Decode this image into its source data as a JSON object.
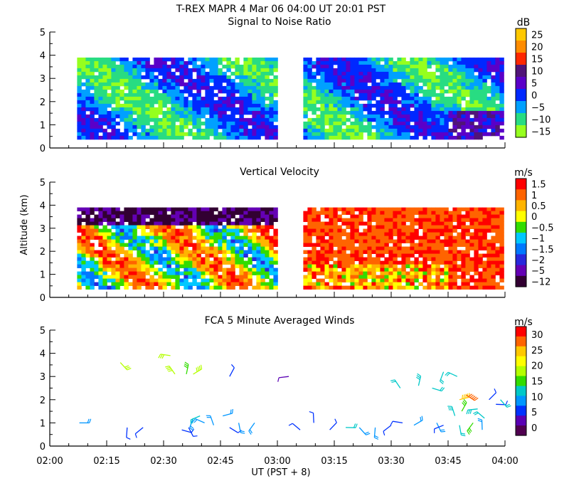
{
  "header": {
    "title": "T-REX   MAPR   4 Mar 06   04:00 UT   20:01   PST"
  },
  "chart_data": [
    {
      "type": "heatmap",
      "title": "Signal to Noise Ratio",
      "ylabel": "",
      "ylim": [
        0,
        5
      ],
      "yticks": [
        "0",
        "1",
        "2",
        "3",
        "4",
        "5"
      ],
      "colorbar": {
        "unit": "dB",
        "labels": [
          "25",
          "20",
          "15",
          "10",
          "5",
          "0",
          "−5",
          "−10",
          "−15"
        ],
        "colors": [
          "#ffc800",
          "#ff8c00",
          "#ff2800",
          "#501478",
          "#5a00c8",
          "#0028ff",
          "#00a0ff",
          "#28dc82",
          "#96ff1e"
        ]
      },
      "data_gaps_utc": [
        [
          "02:59",
          "03:06"
        ]
      ],
      "data_altitude_km": [
        0.4,
        3.9
      ]
    },
    {
      "type": "heatmap",
      "title": "Vertical Velocity",
      "ylabel": "Altitude (km)",
      "ylim": [
        0,
        5
      ],
      "yticks": [
        "0",
        "1",
        "2",
        "3",
        "4",
        "5"
      ],
      "colorbar": {
        "unit": "m/s",
        "labels": [
          "1.5",
          "1",
          "0.5",
          "0",
          "−0.5",
          "−1",
          "−1.5",
          "−2",
          "−5",
          "−12"
        ],
        "colors": [
          "#ff0000",
          "#ff6400",
          "#ffb400",
          "#ffff00",
          "#32dc00",
          "#00c8ff",
          "#0078ff",
          "#2828dc",
          "#6400b4",
          "#320032"
        ]
      },
      "data_gaps_utc": [
        [
          "02:59",
          "03:06"
        ]
      ],
      "data_altitude_km": [
        0.4,
        3.9
      ]
    },
    {
      "type": "scatter",
      "title": "FCA 5 Minute Averaged Winds",
      "ylabel": "",
      "ylim": [
        0,
        5
      ],
      "yticks": [
        "0",
        "1",
        "2",
        "3",
        "4",
        "5"
      ],
      "xlabel": "UT  (PST + 8)",
      "xticks": [
        "02:00",
        "02:15",
        "02:30",
        "02:45",
        "03:00",
        "03:15",
        "03:30",
        "03:45",
        "04:00"
      ],
      "colorbar": {
        "unit": "m/s",
        "labels": [
          "30",
          "25",
          "20",
          "15",
          "10",
          "5",
          "0"
        ],
        "colors": [
          "#ff0000",
          "#ff6400",
          "#ffc800",
          "#ffff00",
          "#b4ff00",
          "#32dc00",
          "#00c8c8",
          "#0096ff",
          "#0032ff",
          "#5a00b4",
          "#500050"
        ]
      },
      "points": [
        {
          "t": 2.13,
          "alt": 1.0,
          "speed": 8
        },
        {
          "t": 2.31,
          "alt": 3.6,
          "speed": 17
        },
        {
          "t": 2.34,
          "alt": 0.8,
          "speed": 5
        },
        {
          "t": 2.41,
          "alt": 0.8,
          "speed": 5
        },
        {
          "t": 2.53,
          "alt": 3.9,
          "speed": 17
        },
        {
          "t": 2.55,
          "alt": 3.1,
          "speed": 18
        },
        {
          "t": 2.6,
          "alt": 3.1,
          "speed": 16
        },
        {
          "t": 2.63,
          "alt": 3.1,
          "speed": 19
        },
        {
          "t": 2.58,
          "alt": 0.7,
          "speed": 6
        },
        {
          "t": 2.61,
          "alt": 0.8,
          "speed": 5
        },
        {
          "t": 2.63,
          "alt": 1.2,
          "speed": 9
        },
        {
          "t": 2.66,
          "alt": 1.3,
          "speed": 12
        },
        {
          "t": 2.68,
          "alt": 1.0,
          "speed": 10
        },
        {
          "t": 2.72,
          "alt": 0.9,
          "speed": 8
        },
        {
          "t": 2.79,
          "alt": 3.0,
          "speed": 5
        },
        {
          "t": 2.76,
          "alt": 1.3,
          "speed": 9
        },
        {
          "t": 2.79,
          "alt": 0.8,
          "speed": 6
        },
        {
          "t": 2.83,
          "alt": 1.0,
          "speed": 10
        },
        {
          "t": 2.9,
          "alt": 1.0,
          "speed": 9
        },
        {
          "t": 3.05,
          "alt": 3.0,
          "speed": 4
        },
        {
          "t": 3.1,
          "alt": 0.7,
          "speed": 5
        },
        {
          "t": 3.16,
          "alt": 1.0,
          "speed": 5
        },
        {
          "t": 3.23,
          "alt": 0.7,
          "speed": 6
        },
        {
          "t": 3.3,
          "alt": 0.8,
          "speed": 11
        },
        {
          "t": 3.36,
          "alt": 0.8,
          "speed": 10
        },
        {
          "t": 3.43,
          "alt": 0.8,
          "speed": 9
        },
        {
          "t": 3.5,
          "alt": 0.9,
          "speed": 6
        },
        {
          "t": 3.55,
          "alt": 1.0,
          "speed": 5
        },
        {
          "t": 3.54,
          "alt": 2.5,
          "speed": 11
        },
        {
          "t": 3.62,
          "alt": 2.6,
          "speed": 13
        },
        {
          "t": 3.6,
          "alt": 0.9,
          "speed": 8
        },
        {
          "t": 3.68,
          "alt": 2.5,
          "speed": 12
        },
        {
          "t": 3.7,
          "alt": 1.0,
          "speed": 8
        },
        {
          "t": 3.73,
          "alt": 3.2,
          "speed": 11
        },
        {
          "t": 3.73,
          "alt": 0.9,
          "speed": 7
        },
        {
          "t": 3.79,
          "alt": 3.0,
          "speed": 12
        },
        {
          "t": 3.78,
          "alt": 1.3,
          "speed": 13
        },
        {
          "t": 3.81,
          "alt": 1.5,
          "speed": 14
        },
        {
          "t": 3.8,
          "alt": 2.0,
          "speed": 24
        },
        {
          "t": 3.83,
          "alt": 2.2,
          "speed": 27
        },
        {
          "t": 3.8,
          "alt": 0.9,
          "speed": 12
        },
        {
          "t": 3.86,
          "alt": 1.0,
          "speed": 14
        },
        {
          "t": 3.88,
          "alt": 1.6,
          "speed": 13
        },
        {
          "t": 3.91,
          "alt": 1.2,
          "speed": 11
        },
        {
          "t": 3.9,
          "alt": 0.7,
          "speed": 8
        },
        {
          "t": 3.93,
          "alt": 2.0,
          "speed": 5
        },
        {
          "t": 3.96,
          "alt": 1.8,
          "speed": 7
        },
        {
          "t": 3.98,
          "alt": 2.0,
          "speed": 12
        }
      ]
    }
  ]
}
